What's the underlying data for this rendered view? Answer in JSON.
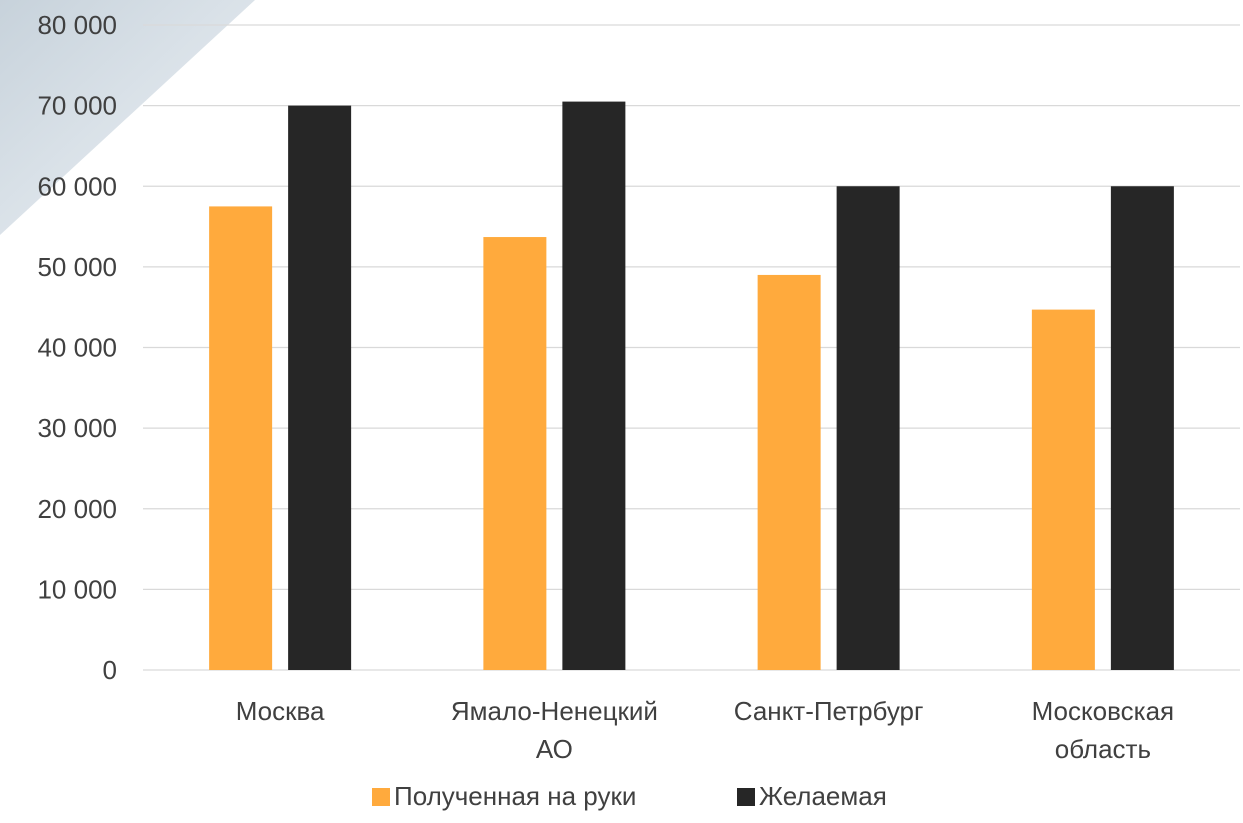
{
  "chart_data": {
    "type": "bar",
    "categories": [
      [
        "Москва"
      ],
      [
        "Ямало-Ненецкий",
        "АО"
      ],
      [
        "Санкт-Петрбург"
      ],
      [
        "Московская",
        "область"
      ]
    ],
    "series": [
      {
        "name": "Полученная на руки",
        "color": "#FFAA3D",
        "values": [
          57500,
          53700,
          49000,
          44700
        ]
      },
      {
        "name": "Желаемая",
        "color": "#262626",
        "values": [
          70000,
          70500,
          60000,
          60000
        ]
      }
    ],
    "ylim": [
      0,
      80000
    ],
    "yticks": [
      0,
      10000,
      20000,
      30000,
      40000,
      50000,
      60000,
      70000,
      80000
    ],
    "ytick_labels": [
      "0",
      "10 000",
      "20 000",
      "30 000",
      "40 000",
      "50 000",
      "60 000",
      "70 000",
      "80 000"
    ],
    "grid": true,
    "legend_position": "bottom"
  }
}
